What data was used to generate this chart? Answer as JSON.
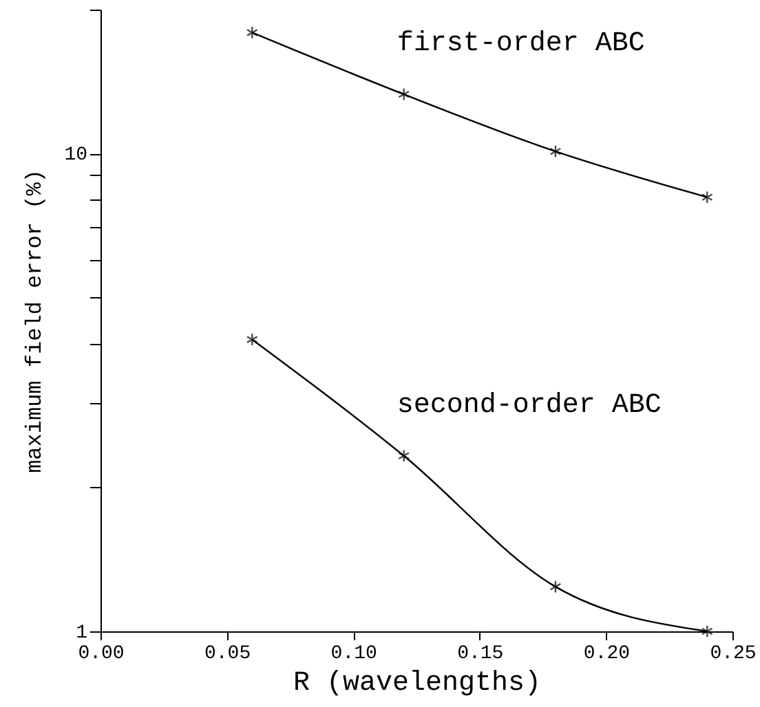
{
  "chart_data": {
    "type": "line",
    "xlabel": "R (wavelengths)",
    "ylabel": "maximum field error (%)",
    "log": "y",
    "marker": "cross",
    "line_style": "solid",
    "grid": false,
    "xlim": [
      0,
      0.25
    ],
    "xticks": [
      {
        "value": 0,
        "label": "0.00"
      },
      {
        "value": 0.05,
        "label": "0.05"
      },
      {
        "value": 0.1,
        "label": "0.10"
      },
      {
        "value": 0.15,
        "label": "0.15"
      },
      {
        "value": 0.2,
        "label": "0.20"
      },
      {
        "value": 0.25,
        "label": "0.25"
      }
    ],
    "ylim": [
      1,
      20
    ],
    "yticks": [
      1,
      {
        "value": 2,
        "label": null
      },
      {
        "value": 3,
        "label": null
      },
      {
        "value": 4,
        "label": null
      },
      {
        "value": 5,
        "label": null
      },
      {
        "value": 6,
        "label": null
      },
      {
        "value": 7,
        "label": null
      },
      {
        "value": 8,
        "label": null
      },
      {
        "value": 9,
        "label": null
      },
      10,
      {
        "value": 20,
        "label": null
      }
    ],
    "x": [
      0.06,
      0.12,
      0.18,
      0.24
    ],
    "series": [
      {
        "name": "first-order ABC",
        "color": "#000000",
        "values": [
          17.9,
          13.3,
          10.1,
          8.1
        ]
      },
      {
        "name": "second-order ABC",
        "color": "#000000",
        "values": [
          4.08,
          2.33,
          1.24,
          1.0
        ]
      }
    ]
  }
}
